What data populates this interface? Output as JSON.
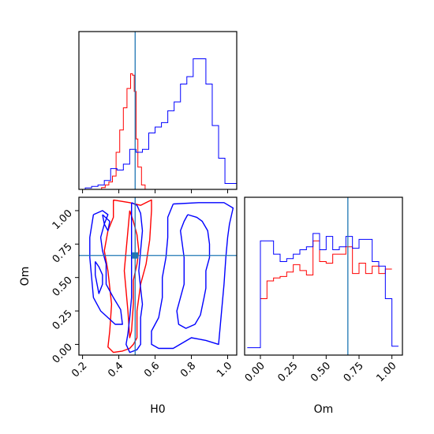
{
  "chart_data": {
    "type": "corner",
    "parameters": [
      "H0",
      "Om"
    ],
    "truth": {
      "H0": 0.49,
      "Om": 0.665
    },
    "colors": {
      "red": "#ff0000",
      "blue": "#0000ff",
      "truth": "#1f77b4"
    },
    "grid": false,
    "legend": false,
    "panels": [
      {
        "id": "h0_marginal",
        "type": "histogram",
        "xlim": [
          0.18,
          1.05
        ],
        "series": [
          {
            "color": "#ff0000",
            "bin_edges": [
              0.2,
              0.305,
              0.325,
              0.345,
              0.365,
              0.385,
              0.405,
              0.425,
              0.445,
              0.465,
              0.475,
              0.485,
              0.495,
              0.505,
              0.525,
              0.545,
              0.565
            ],
            "counts": [
              0.0,
              0.012,
              0.03,
              0.05,
              0.09,
              0.25,
              0.4,
              0.55,
              0.68,
              0.78,
              0.77,
              0.66,
              0.34,
              0.15,
              0.03,
              0.0
            ]
          },
          {
            "color": "#0000ff",
            "bin_edges": [
              0.18,
              0.215,
              0.25,
              0.285,
              0.32,
              0.355,
              0.39,
              0.425,
              0.46,
              0.495,
              0.53,
              0.565,
              0.6,
              0.635,
              0.67,
              0.705,
              0.74,
              0.775,
              0.81,
              0.845,
              0.88,
              0.915,
              0.95,
              0.985,
              1.05
            ],
            "counts": [
              0.0,
              0.01,
              0.02,
              0.03,
              0.06,
              0.14,
              0.13,
              0.17,
              0.27,
              0.25,
              0.27,
              0.38,
              0.42,
              0.45,
              0.53,
              0.59,
              0.71,
              0.76,
              0.88,
              0.88,
              0.71,
              0.43,
              0.21,
              0.04
            ]
          }
        ]
      },
      {
        "id": "h0_om_2d",
        "type": "contour",
        "xlim": [
          0.18,
          1.05
        ],
        "ylim": [
          -0.08,
          1.1
        ],
        "xticks": [
          "0.2",
          "0.4",
          "0.6",
          "0.8",
          "1.0"
        ],
        "yticks": [
          "0.00",
          "0.25",
          "0.50",
          "0.75",
          "1.00"
        ],
        "ylabel": "Om",
        "series": [
          {
            "color": "#ff0000",
            "contours": [
              [
                [
                  0.37,
                  1.08
                ],
                [
                  0.46,
                  1.06
                ],
                [
                  0.52,
                  1.04
                ],
                [
                  0.55,
                  1.06
                ],
                [
                  0.58,
                  1.08
                ],
                [
                  0.58,
                  1.0
                ],
                [
                  0.57,
                  0.78
                ],
                [
                  0.55,
                  0.6
                ],
                [
                  0.52,
                  0.45
                ],
                [
                  0.5,
                  0.25
                ],
                [
                  0.5,
                  0.05
                ],
                [
                  0.48,
                  0.0
                ],
                [
                  0.46,
                  -0.03
                ],
                [
                  0.42,
                  -0.05
                ],
                [
                  0.37,
                  -0.06
                ],
                [
                  0.34,
                  -0.02
                ],
                [
                  0.35,
                  0.1
                ],
                [
                  0.36,
                  0.3
                ],
                [
                  0.34,
                  0.55
                ],
                [
                  0.32,
                  0.7
                ],
                [
                  0.34,
                  0.85
                ],
                [
                  0.37,
                  0.95
                ],
                [
                  0.37,
                  1.08
                ]
              ],
              [
                [
                  0.46,
                  1.0
                ],
                [
                  0.48,
                  0.92
                ],
                [
                  0.5,
                  0.82
                ],
                [
                  0.51,
                  0.7
                ],
                [
                  0.5,
                  0.6
                ],
                [
                  0.48,
                  0.48
                ],
                [
                  0.48,
                  0.3
                ],
                [
                  0.47,
                  0.1
                ],
                [
                  0.46,
                  0.05
                ],
                [
                  0.45,
                  0.25
                ],
                [
                  0.44,
                  0.4
                ],
                [
                  0.43,
                  0.55
                ],
                [
                  0.44,
                  0.7
                ],
                [
                  0.45,
                  0.85
                ],
                [
                  0.46,
                  1.0
                ]
              ]
            ]
          },
          {
            "color": "#0000ff",
            "contours": [
              [
                [
                  0.47,
                  1.06
                ],
                [
                  0.5,
                  1.04
                ],
                [
                  0.52,
                  0.98
                ],
                [
                  0.53,
                  0.85
                ],
                [
                  0.52,
                  0.7
                ],
                [
                  0.51,
                  0.55
                ],
                [
                  0.52,
                  0.42
                ],
                [
                  0.53,
                  0.3
                ],
                [
                  0.52,
                  0.2
                ],
                [
                  0.52,
                  0.0
                ],
                [
                  0.5,
                  -0.04
                ],
                [
                  0.46,
                  -0.06
                ],
                [
                  0.44,
                  0.0
                ],
                [
                  0.45,
                  0.08
                ],
                [
                  0.46,
                  0.2
                ],
                [
                  0.47,
                  0.35
                ],
                [
                  0.47,
                  0.55
                ],
                [
                  0.47,
                  0.75
                ],
                [
                  0.47,
                  0.9
                ],
                [
                  0.47,
                  1.06
                ]
              ],
              [
                [
                  0.26,
                  0.97
                ],
                [
                  0.31,
                  1.0
                ],
                [
                  0.34,
                  0.97
                ],
                [
                  0.32,
                  0.9
                ],
                [
                  0.3,
                  0.8
                ],
                [
                  0.31,
                  0.7
                ],
                [
                  0.33,
                  0.6
                ],
                [
                  0.33,
                  0.45
                ],
                [
                  0.37,
                  0.35
                ],
                [
                  0.41,
                  0.26
                ],
                [
                  0.42,
                  0.15
                ],
                [
                  0.38,
                  0.15
                ],
                [
                  0.34,
                  0.2
                ],
                [
                  0.3,
                  0.25
                ],
                [
                  0.26,
                  0.35
                ],
                [
                  0.25,
                  0.5
                ],
                [
                  0.24,
                  0.65
                ],
                [
                  0.24,
                  0.8
                ],
                [
                  0.26,
                  0.97
                ]
              ],
              [
                [
                  0.27,
                  0.62
                ],
                [
                  0.29,
                  0.58
                ],
                [
                  0.31,
                  0.52
                ],
                [
                  0.31,
                  0.45
                ],
                [
                  0.29,
                  0.38
                ],
                [
                  0.28,
                  0.45
                ],
                [
                  0.27,
                  0.52
                ],
                [
                  0.27,
                  0.62
                ]
              ],
              [
                [
                  0.78,
                  0.97
                ],
                [
                  0.83,
                  0.95
                ],
                [
                  0.86,
                  0.92
                ],
                [
                  0.89,
                  0.85
                ],
                [
                  0.9,
                  0.75
                ],
                [
                  0.9,
                  0.65
                ],
                [
                  0.88,
                  0.55
                ],
                [
                  0.88,
                  0.42
                ],
                [
                  0.87,
                  0.35
                ],
                [
                  0.85,
                  0.22
                ],
                [
                  0.82,
                  0.15
                ],
                [
                  0.77,
                  0.12
                ],
                [
                  0.73,
                  0.15
                ],
                [
                  0.72,
                  0.25
                ],
                [
                  0.74,
                  0.35
                ],
                [
                  0.76,
                  0.45
                ],
                [
                  0.76,
                  0.55
                ],
                [
                  0.76,
                  0.65
                ],
                [
                  0.75,
                  0.75
                ],
                [
                  0.74,
                  0.85
                ],
                [
                  0.76,
                  0.92
                ],
                [
                  0.78,
                  0.97
                ]
              ],
              [
                [
                  0.7,
                  1.05
                ],
                [
                  0.84,
                  1.06
                ],
                [
                  0.98,
                  1.06
                ],
                [
                  1.03,
                  1.02
                ],
                [
                  1.01,
                  0.9
                ],
                [
                  1.0,
                  0.8
                ],
                [
                  0.99,
                  0.65
                ],
                [
                  0.98,
                  0.45
                ],
                [
                  0.97,
                  0.3
                ],
                [
                  0.96,
                  0.15
                ],
                [
                  0.95,
                  0.0
                ],
                [
                  0.88,
                  0.03
                ],
                [
                  0.8,
                  0.05
                ],
                [
                  0.7,
                  -0.03
                ],
                [
                  0.62,
                  -0.03
                ],
                [
                  0.58,
                  0.0
                ],
                [
                  0.58,
                  0.1
                ],
                [
                  0.62,
                  0.2
                ],
                [
                  0.64,
                  0.35
                ],
                [
                  0.64,
                  0.5
                ],
                [
                  0.66,
                  0.65
                ],
                [
                  0.67,
                  0.8
                ],
                [
                  0.67,
                  0.95
                ],
                [
                  0.7,
                  1.05
                ]
              ],
              [
                [
                  0.31,
                  0.97
                ],
                [
                  0.35,
                  0.92
                ],
                [
                  0.34,
                  0.85
                ],
                [
                  0.32,
                  0.9
                ],
                [
                  0.31,
                  0.97
                ]
              ]
            ]
          }
        ]
      },
      {
        "id": "om_marginal",
        "type": "histogram",
        "xlim": [
          -0.12,
          1.08
        ],
        "xticks": [
          "0.00",
          "0.25",
          "0.50",
          "0.75",
          "1.00"
        ],
        "xlabel": "Om",
        "series": [
          {
            "color": "#ff0000",
            "bin_edges": [
              0.0,
              0.05,
              0.1,
              0.15,
              0.2,
              0.25,
              0.3,
              0.35,
              0.4,
              0.45,
              0.5,
              0.55,
              0.6,
              0.65,
              0.7,
              0.75,
              0.8,
              0.85,
              0.9,
              0.95,
              1.0
            ],
            "counts": [
              0.38,
              0.5,
              0.52,
              0.53,
              0.56,
              0.61,
              0.57,
              0.54,
              0.77,
              0.63,
              0.62,
              0.68,
              0.68,
              0.73,
              0.55,
              0.62,
              0.55,
              0.6,
              0.55,
              0.58
            ]
          },
          {
            "color": "#0000ff",
            "bin_edges": [
              -0.1,
              -0.05,
              0.0,
              0.05,
              0.1,
              0.15,
              0.2,
              0.25,
              0.3,
              0.35,
              0.4,
              0.45,
              0.5,
              0.55,
              0.6,
              0.65,
              0.7,
              0.75,
              0.8,
              0.85,
              0.9,
              0.95,
              1.0,
              1.05
            ],
            "counts": [
              0.05,
              0.05,
              0.77,
              0.77,
              0.68,
              0.63,
              0.65,
              0.68,
              0.71,
              0.73,
              0.82,
              0.71,
              0.8,
              0.71,
              0.73,
              0.8,
              0.72,
              0.78,
              0.78,
              0.63,
              0.6,
              0.38,
              0.06
            ]
          }
        ]
      }
    ],
    "xlabels": [
      "H0",
      "Om"
    ]
  }
}
